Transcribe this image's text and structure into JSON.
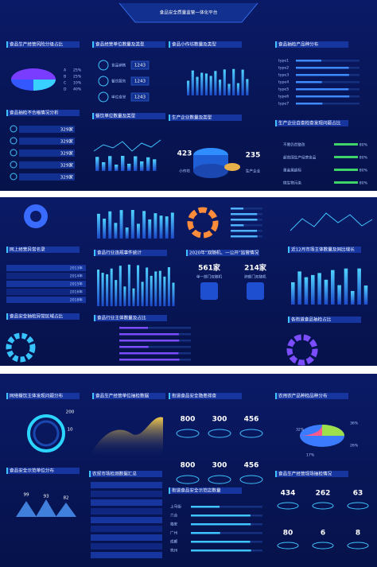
{
  "top": {
    "title": "食品安全质量监管一体化平台",
    "risk": {
      "title": "食品生产经营风险分级占比",
      "legend": [
        {
          "label": "A",
          "value": "25%"
        },
        {
          "label": "B",
          "value": "25%"
        },
        {
          "label": "C",
          "value": "10%"
        },
        {
          "label": "D",
          "value": "40%"
        }
      ]
    },
    "units": {
      "title": "食品经营单位数量及类型",
      "rows": [
        {
          "label": "食品销售",
          "value": "1243"
        },
        {
          "label": "餐饮服务",
          "value": "1243"
        },
        {
          "label": "单位食堂",
          "value": "1243"
        }
      ]
    },
    "workshop": {
      "title": "食品小作坊数量及类型"
    },
    "types": {
      "title": "食品抽检产品种分布",
      "rows": [
        "type1",
        "type2",
        "type3",
        "type4",
        "type5",
        "type6",
        "type7"
      ]
    },
    "unqualified": {
      "title": "食品抽检不合格情况分析",
      "values": [
        "329家",
        "329家",
        "329家",
        "329家",
        "329家"
      ]
    },
    "catering": {
      "title": "餐饮单位数量及类型"
    },
    "enterprise": {
      "title": "生产企业数量及类型",
      "items": [
        {
          "value": "423",
          "label": "小作坊"
        },
        {
          "value": "235",
          "label": "生产企业"
        }
      ]
    },
    "selfcheck": {
      "title": "生产企业自查检查发现问题占比",
      "rows": [
        {
          "label": "不需仍然整改",
          "value": "80%"
        },
        {
          "label": "超范围生产经营食品",
          "value": "80%"
        },
        {
          "label": "重金属超标",
          "value": "80%"
        },
        {
          "label": "微生物污染",
          "value": "80%"
        }
      ]
    }
  },
  "mid": {
    "list": {
      "title": "网上经营异常名录",
      "years": [
        "2013年",
        "2014年",
        "2015年",
        "2016年",
        "2018年"
      ]
    },
    "violations": {
      "title": "食品行业违规事件统计"
    },
    "inspection": {
      "title": "2020年“双随机、一公开”监管情况",
      "items": [
        {
          "value": "561家",
          "label": "单一部门双随机"
        },
        {
          "value": "214家",
          "label": "跨部门双随机"
        }
      ]
    },
    "market": {
      "title": "近12月市场主体数量及同比增长"
    },
    "region": {
      "title": "食品安全抽检异常区域占比"
    },
    "industry": {
      "title": "食品行业主体数量及占比"
    },
    "street": {
      "title": "各街道食品抽检占比"
    }
  },
  "bottom": {
    "online": {
      "title": "网络餐饮主体发现问题分布",
      "values": [
        "200",
        "10"
      ]
    },
    "sampling": {
      "title": "食品生产经营单位抽检数据"
    },
    "hazard": {
      "title": "街道食品安全隐患排查",
      "values": [
        "800",
        "300",
        "456",
        "800",
        "300",
        "456"
      ]
    },
    "produce": {
      "title": "农用农产品种检品种分布",
      "labels": [
        "36%",
        "32%",
        "26%",
        "17%"
      ]
    },
    "model": {
      "title": "食品安全示范单位分布",
      "values": [
        "99",
        "93",
        "82"
      ]
    },
    "farm": {
      "title": "农贸市场检测数据汇总"
    },
    "shops": {
      "title": "街道食品安全示范店数量",
      "rows": [
        "上马街",
        "六合",
        "临安",
        "广州",
        "成都",
        "杭州"
      ]
    },
    "site": {
      "title": "食品生产经营现场抽检情况",
      "values": [
        "434",
        "262",
        "63",
        "80",
        "6",
        "8"
      ]
    }
  }
}
